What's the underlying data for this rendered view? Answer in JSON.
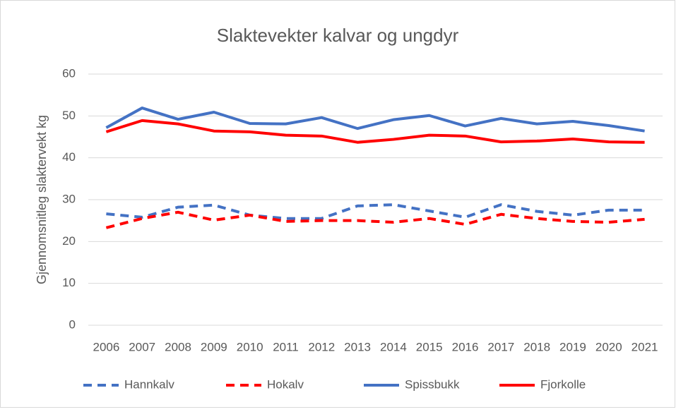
{
  "chart_data": {
    "type": "line",
    "title": "Slaktevekter kalvar og ungdyr",
    "y_label": "Gjennomsnitleg slaktervekt kg",
    "categories": [
      "2006",
      "2007",
      "2008",
      "2009",
      "2010",
      "2011",
      "2012",
      "2013",
      "2014",
      "2015",
      "2016",
      "2017",
      "2018",
      "2019",
      "2020",
      "2021"
    ],
    "series": [
      {
        "name": "Hannkalv",
        "color": "#4472c4",
        "dashed": true,
        "values": [
          26.6,
          25.8,
          28.2,
          28.7,
          26.3,
          25.5,
          25.5,
          28.5,
          28.8,
          27.3,
          25.8,
          28.8,
          27.2,
          26.3,
          27.5,
          27.5
        ]
      },
      {
        "name": "Hokalv",
        "color": "#ff0000",
        "dashed": true,
        "values": [
          23.3,
          25.5,
          27.0,
          25.1,
          26.3,
          24.8,
          25.0,
          25.0,
          24.6,
          25.5,
          24.1,
          26.5,
          25.5,
          24.8,
          24.6,
          25.3
        ]
      },
      {
        "name": "Spissbukk",
        "color": "#4472c4",
        "dashed": false,
        "values": [
          47.2,
          51.9,
          49.2,
          50.9,
          48.2,
          48.1,
          49.6,
          47.0,
          49.1,
          50.1,
          47.6,
          49.4,
          48.1,
          48.7,
          47.7,
          46.4
        ]
      },
      {
        "name": "Fjorkolle",
        "color": "#ff0000",
        "dashed": false,
        "values": [
          46.2,
          48.9,
          48.1,
          46.4,
          46.2,
          45.4,
          45.2,
          43.7,
          44.4,
          45.4,
          45.2,
          43.8,
          44.0,
          44.5,
          43.8,
          43.7
        ]
      }
    ],
    "ylim": [
      0,
      60
    ],
    "yticks": [
      0,
      10,
      20,
      30,
      40,
      50,
      60
    ],
    "grid": true,
    "legend": "bottom"
  }
}
